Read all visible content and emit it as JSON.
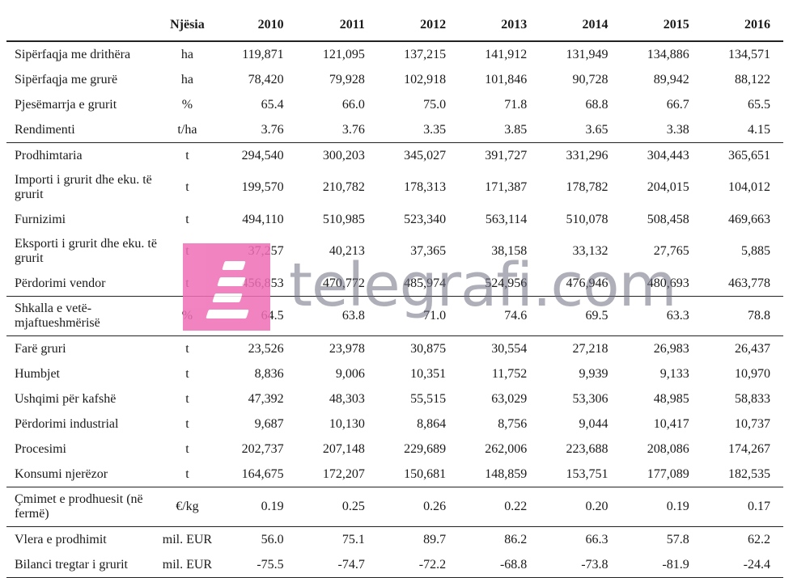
{
  "header": {
    "unit": "Njësia",
    "years": [
      "2010",
      "2011",
      "2012",
      "2013",
      "2014",
      "2015",
      "2016"
    ]
  },
  "rows": [
    {
      "label": "Sipërfaqja me drithëra",
      "unit": "ha",
      "values": [
        "119,871",
        "121,095",
        "137,215",
        "141,912",
        "131,949",
        "134,886",
        "134,571"
      ]
    },
    {
      "label": "Sipërfaqja me grurë",
      "unit": "ha",
      "values": [
        "78,420",
        "79,928",
        "102,918",
        "101,846",
        "90,728",
        "89,942",
        "88,122"
      ]
    },
    {
      "label": "Pjesëmarrja e grurit",
      "unit": "%",
      "values": [
        "65.4",
        "66.0",
        "75.0",
        "71.8",
        "68.8",
        "66.7",
        "65.5"
      ]
    },
    {
      "label": "Rendimenti",
      "unit": "t/ha",
      "values": [
        "3.76",
        "3.76",
        "3.35",
        "3.85",
        "3.65",
        "3.38",
        "4.15"
      ]
    },
    {
      "label": "Prodhimtaria",
      "unit": "t",
      "values": [
        "294,540",
        "300,203",
        "345,027",
        "391,727",
        "331,296",
        "304,443",
        "365,651"
      ]
    },
    {
      "label": "Importi i grurit dhe eku. të grurit",
      "unit": "t",
      "values": [
        "199,570",
        "210,782",
        "178,313",
        "171,387",
        "178,782",
        "204,015",
        "104,012"
      ]
    },
    {
      "label": "Furnizimi",
      "unit": "t",
      "values": [
        "494,110",
        "510,985",
        "523,340",
        "563,114",
        "510,078",
        "508,458",
        "469,663"
      ]
    },
    {
      "label": "Eksporti i grurit dhe eku. të grurit",
      "unit": "t",
      "values": [
        "37,257",
        "40,213",
        "37,365",
        "38,158",
        "33,132",
        "27,765",
        "5,885"
      ]
    },
    {
      "label": "Përdorimi vendor",
      "unit": "t",
      "values": [
        "456,853",
        "470,772",
        "485,974",
        "524,956",
        "476,946",
        "480,693",
        "463,778"
      ]
    },
    {
      "label": "Shkalla e vetë-mjaftueshmërisë",
      "unit": "%",
      "values": [
        "64.5",
        "63.8",
        "71.0",
        "74.6",
        "69.5",
        "63.3",
        "78.8"
      ]
    },
    {
      "label": "Farë gruri",
      "unit": "t",
      "values": [
        "23,526",
        "23,978",
        "30,875",
        "30,554",
        "27,218",
        "26,983",
        "26,437"
      ]
    },
    {
      "label": "Humbjet",
      "unit": "t",
      "values": [
        "8,836",
        "9,006",
        "10,351",
        "11,752",
        "9,939",
        "9,133",
        "10,970"
      ]
    },
    {
      "label": "Ushqimi për kafshë",
      "unit": "t",
      "values": [
        "47,392",
        "48,303",
        "55,515",
        "63,029",
        "53,306",
        "48,985",
        "58,833"
      ]
    },
    {
      "label": "Përdorimi industrial",
      "unit": "t",
      "values": [
        "9,687",
        "10,130",
        "8,864",
        "8,756",
        "9,044",
        "10,417",
        "10,737"
      ]
    },
    {
      "label": "Procesimi",
      "unit": "t",
      "values": [
        "202,737",
        "207,148",
        "229,689",
        "262,006",
        "223,688",
        "208,086",
        "174,267"
      ]
    },
    {
      "label": "Konsumi njerëzor",
      "unit": "t",
      "values": [
        "164,675",
        "172,207",
        "150,681",
        "148,859",
        "153,751",
        "177,089",
        "182,535"
      ]
    },
    {
      "label": "Çmimet e prodhuesit (në fermë)",
      "unit": "€/kg",
      "values": [
        "0.19",
        "0.25",
        "0.26",
        "0.22",
        "0.20",
        "0.19",
        "0.17"
      ]
    },
    {
      "label": "Vlera e prodhimit",
      "unit": "mil. EUR",
      "values": [
        "56.0",
        "75.1",
        "89.7",
        "86.2",
        "66.3",
        "57.8",
        "62.2"
      ]
    },
    {
      "label": "Bilanci tregtar i grurit",
      "unit": "mil. EUR",
      "values": [
        "-75.5",
        "-74.7",
        "-72.2",
        "-68.8",
        "-73.8",
        "-81.9",
        "-24.4"
      ]
    }
  ],
  "watermark": {
    "text": "telegrafi.com",
    "logo_color": "#ef6fb6"
  }
}
